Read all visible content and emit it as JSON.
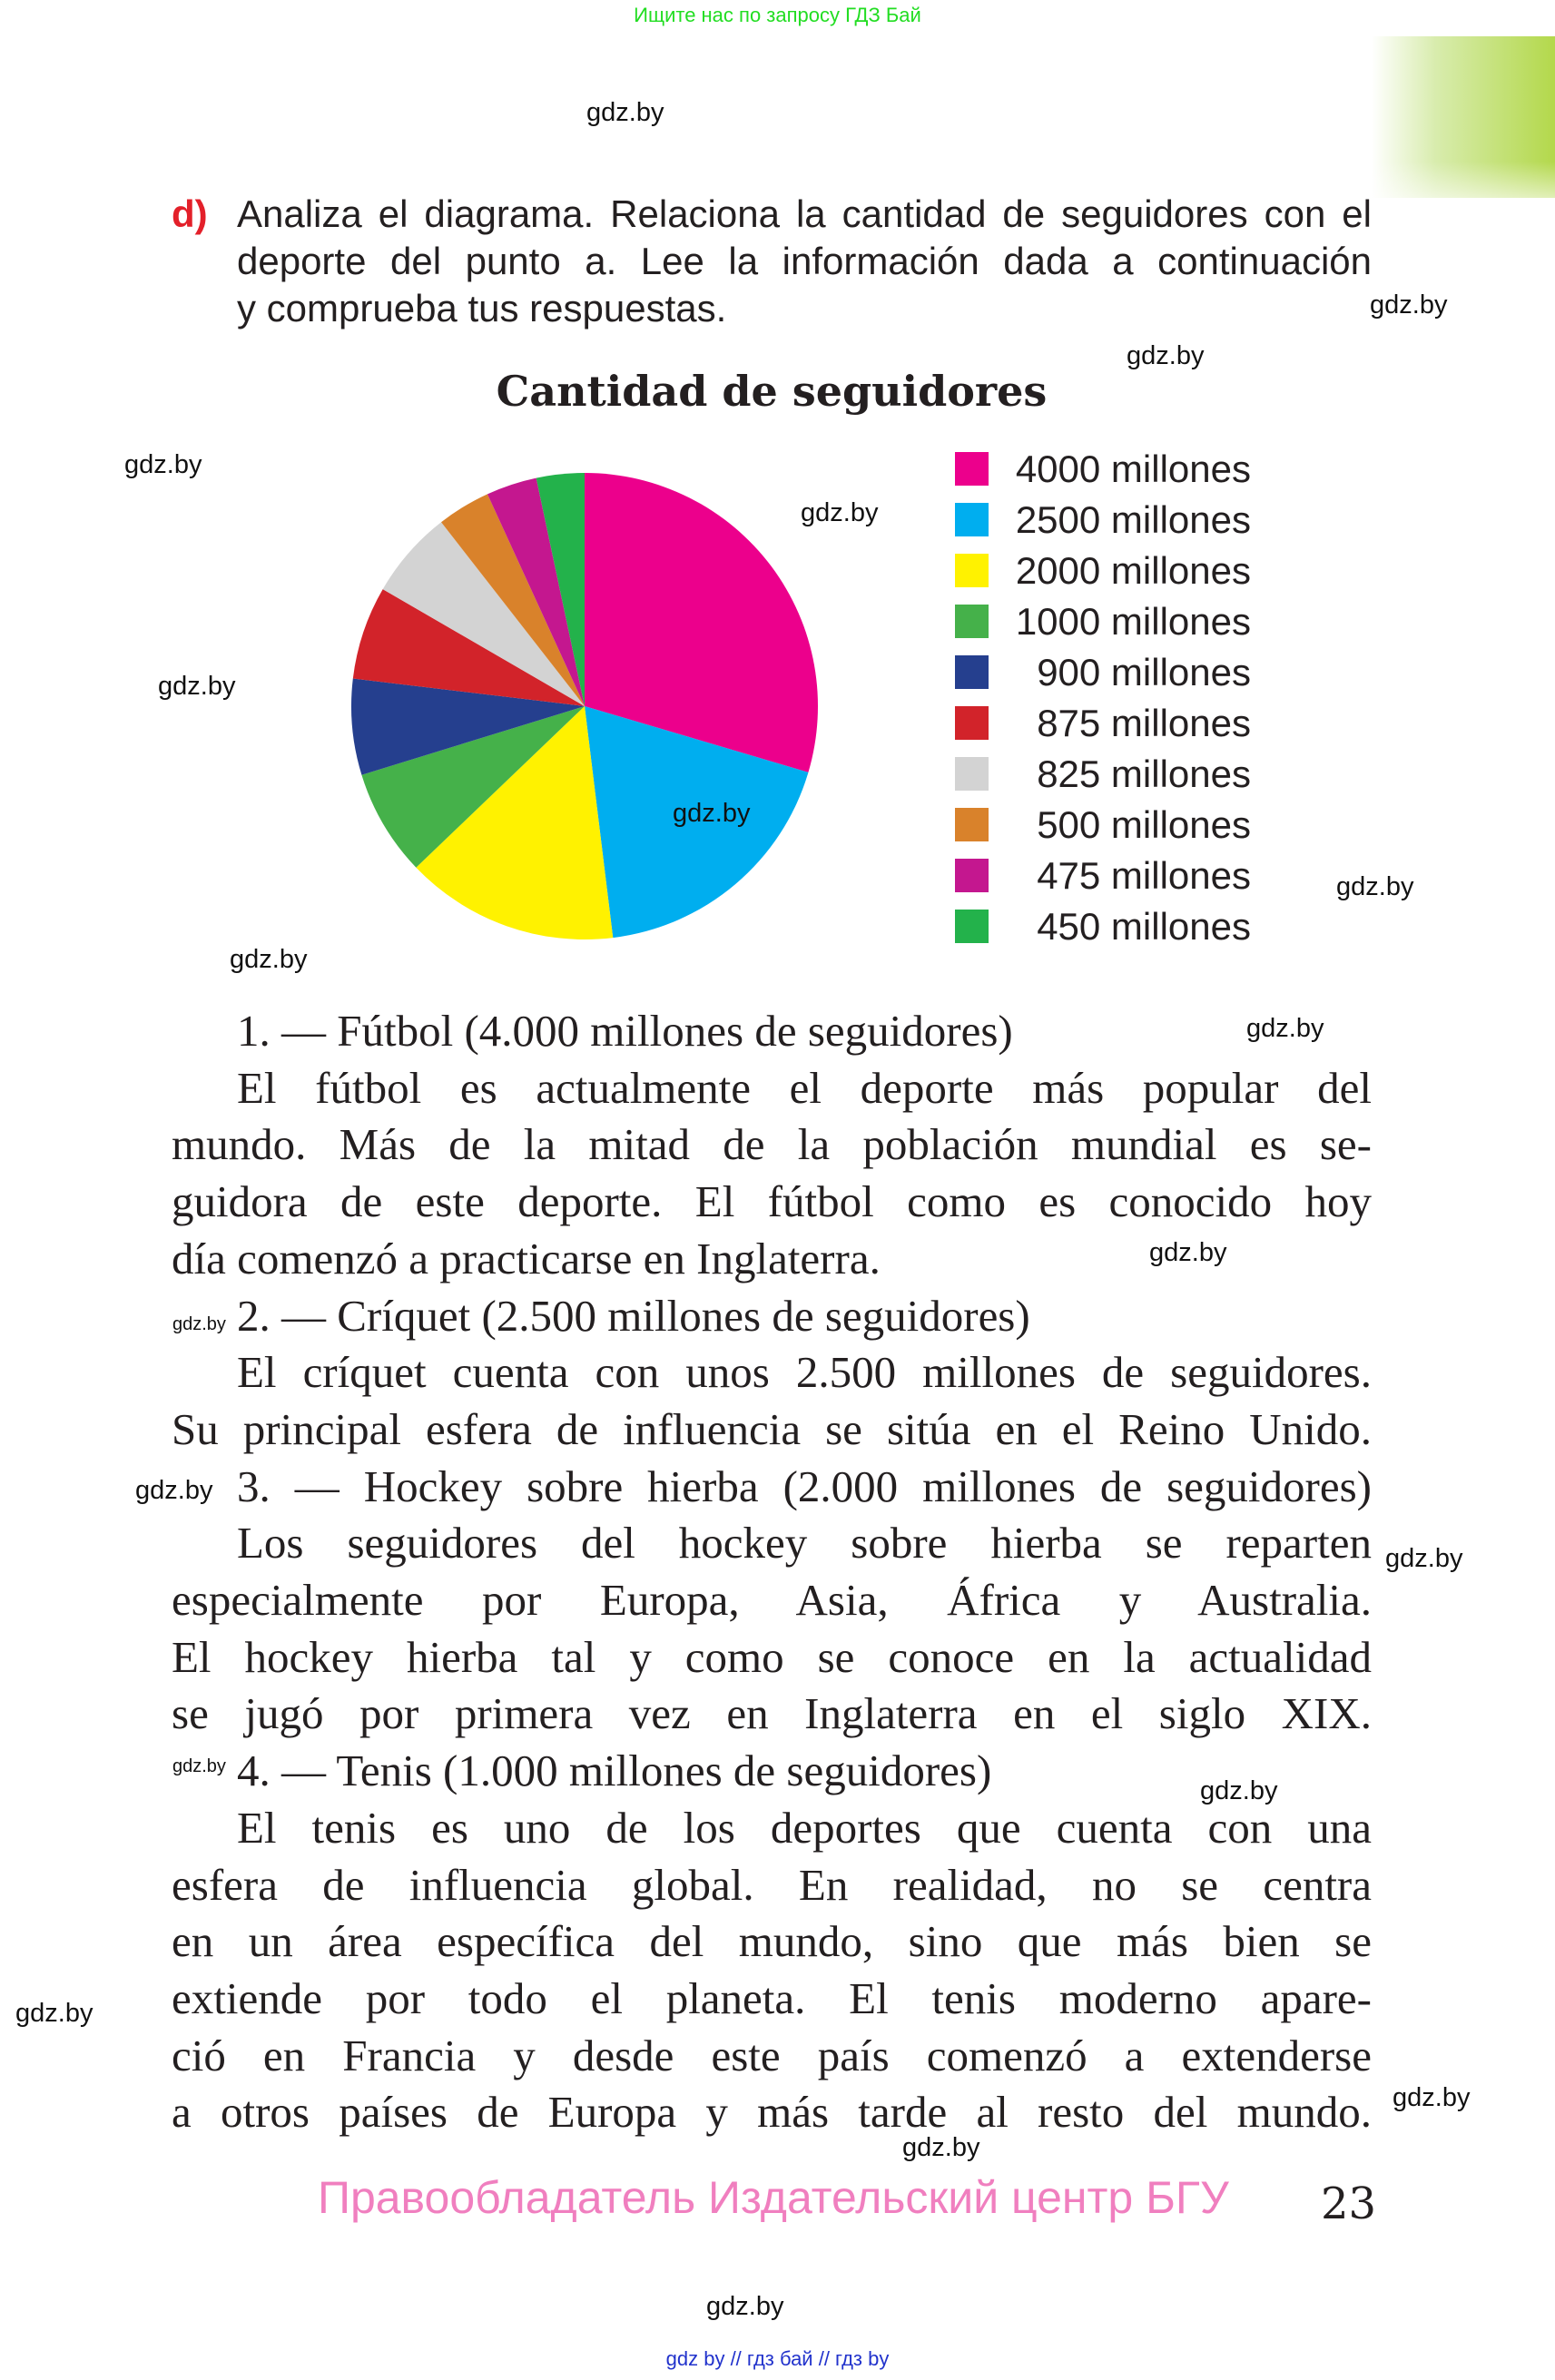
{
  "header": {
    "search_note": "Ищите нас по запросу ГДЗ Бай"
  },
  "watermark": "gdz.by",
  "question": {
    "letter": "d)",
    "lines": [
      "Analiza el diagrama. Relaciona la cantidad de seguidores con el",
      "deporte del punto a. Lee la información dada a continuación",
      "y comprueba tus respuestas."
    ]
  },
  "chart_data": {
    "type": "pie",
    "title": "Cantidad de seguidores",
    "legend_position": "right",
    "categories": [
      "4000 millones",
      "2500 millones",
      "2000 millones",
      "1000 millones",
      "900 millones",
      "875 millones",
      "825 millones",
      "500 millones",
      "475 millones",
      "450 millones"
    ],
    "values": [
      4000,
      2500,
      2000,
      1000,
      900,
      875,
      825,
      500,
      475,
      450
    ],
    "colors": [
      "#ec008c",
      "#00aeef",
      "#fff200",
      "#45b14a",
      "#253f8e",
      "#d2232a",
      "#d3d3d3",
      "#d9822b",
      "#c4178f",
      "#23b24b"
    ]
  },
  "body": {
    "lines": [
      "1. — Fútbol (4.000 millones de seguidores)",
      "El fútbol es actualmente el deporte más popular del",
      "mundo. Más de la mitad de la población mundial es se-",
      "guidora de este deporte. El fútbol como es conocido hoy",
      "día comenzó a practicarse en Inglaterra.",
      "2. — Críquet (2.500 millones de seguidores)",
      "El críquet cuenta con unos 2.500 millones de seguidores.",
      "Su principal esfera de influencia se sitúa en el Reino Unido.",
      "3. — Hockey sobre hierba (2.000 millones de seguidores)",
      "Los seguidores del hockey sobre hierba se reparten",
      "especialmente por Europa, Asia, África y Australia.",
      "El hockey hierba tal y como se conoce en la actualidad",
      "se jugó por primera vez en Inglaterra en el siglo XIX.",
      "4. — Tenis (1.000 millones de seguidores)",
      "El tenis es uno de los deportes que cuenta con una",
      "esfera de influencia global. En realidad, no se centra",
      "en un área específica del mundo, sino que más bien se",
      "extiende por todo el planeta. El tenis moderno apare-",
      "ció en Francia y desde este país comenzó a extenderse",
      "a otros países de Europa y más tarde al resto del mundo."
    ]
  },
  "footer": {
    "copyright": "Правообладатель Издательский центр БГУ",
    "page_number": "23",
    "links": "gdz by  //  гдз бай  //  гдз by"
  }
}
